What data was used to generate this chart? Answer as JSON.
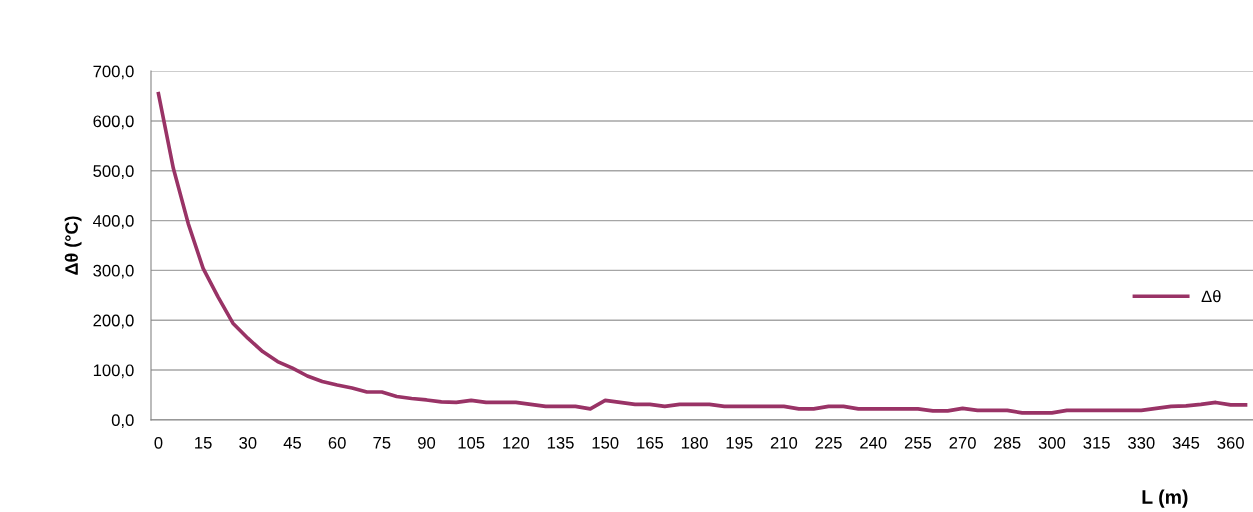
{
  "chart_data": {
    "type": "line",
    "xlabel": "L (m)",
    "ylabel": "Δθ (°C)",
    "x": [
      0,
      5,
      10,
      15,
      20,
      25,
      30,
      35,
      40,
      45,
      50,
      55,
      60,
      65,
      70,
      75,
      80,
      85,
      90,
      95,
      100,
      105,
      110,
      115,
      120,
      125,
      130,
      135,
      140,
      145,
      150,
      155,
      160,
      165,
      170,
      175,
      180,
      185,
      190,
      195,
      200,
      205,
      210,
      215,
      220,
      225,
      230,
      235,
      240,
      245,
      250,
      255,
      260,
      265,
      270,
      275,
      280,
      285,
      290,
      295,
      300,
      305,
      310,
      315,
      320,
      325,
      330,
      335,
      340,
      345,
      350,
      355,
      360,
      365
    ],
    "series": [
      {
        "name": "Δθ",
        "color": "#993366",
        "values": [
          655,
          505,
          394,
          304,
          247,
          194,
          164,
          137,
          117,
          104,
          88,
          77,
          70,
          64,
          56,
          56,
          47,
          43,
          40,
          36,
          35,
          39,
          35,
          35,
          35,
          31,
          27,
          27,
          27,
          22,
          39,
          35,
          31,
          31,
          27,
          31,
          31,
          31,
          27,
          27,
          27,
          27,
          27,
          22,
          22,
          27,
          27,
          22,
          22,
          22,
          22,
          22,
          18,
          18,
          23,
          19,
          19,
          19,
          14,
          14,
          14,
          19,
          19,
          19,
          19,
          19,
          19,
          23,
          27,
          28,
          31,
          35,
          30,
          30
        ]
      }
    ],
    "xlim": [
      -2.5,
      367.5
    ],
    "xticks": [
      0,
      15,
      30,
      45,
      60,
      75,
      90,
      105,
      120,
      135,
      150,
      165,
      180,
      195,
      210,
      225,
      240,
      255,
      270,
      285,
      300,
      315,
      330,
      345,
      360
    ],
    "ylim": [
      0,
      700
    ],
    "yticks": [
      {
        "value": 0,
        "label": "0,0"
      },
      {
        "value": 100,
        "label": "100,0"
      },
      {
        "value": 200,
        "label": "200,0"
      },
      {
        "value": 300,
        "label": "300,0"
      },
      {
        "value": 400,
        "label": "400,0"
      },
      {
        "value": 500,
        "label": "500,0"
      },
      {
        "value": 600,
        "label": "600,0"
      },
      {
        "value": 700,
        "label": "700,0"
      }
    ],
    "grid": "y",
    "legend": "right",
    "marker": "none",
    "line_style": "solid"
  }
}
